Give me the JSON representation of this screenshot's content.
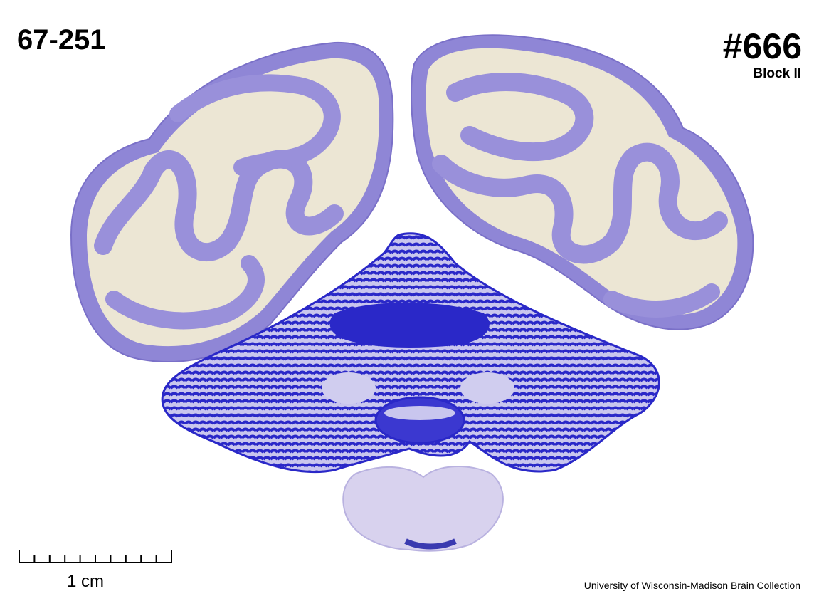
{
  "header": {
    "accession_number": "67-251",
    "case_number": "#666",
    "block": "Block II"
  },
  "scale_bar": {
    "label": "1 cm",
    "divisions": 10
  },
  "footer": {
    "credit": "University of Wisconsin-Madison Brain Collection"
  },
  "colors": {
    "background": "#ffffff",
    "gray_matter": "#8f86d6",
    "white_matter": "#ece6d4",
    "cerebellum_stain": "#2a28c8",
    "brainstem": "#d8d2ee"
  },
  "specimen": {
    "sections": [
      "left-hemisphere",
      "right-hemisphere",
      "cerebellum",
      "medulla"
    ]
  }
}
